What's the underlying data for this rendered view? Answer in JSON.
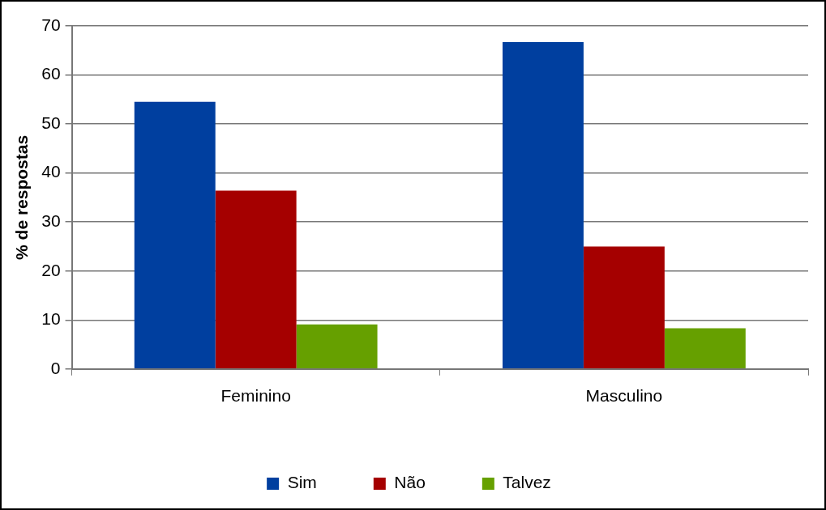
{
  "chart_data": {
    "type": "bar",
    "ylabel": "% de respostas",
    "categories": [
      "Feminino",
      "Masculino"
    ],
    "series": [
      {
        "name": "Sim",
        "color": "#003f9f",
        "values": [
          54.5,
          66.7
        ]
      },
      {
        "name": "Não",
        "color": "#a50000",
        "values": [
          36.4,
          25
        ]
      },
      {
        "name": "Talvez",
        "color": "#66a000",
        "values": [
          9.1,
          8.3
        ]
      }
    ],
    "ylim": [
      0,
      70
    ],
    "yticks": [
      0,
      10,
      20,
      30,
      40,
      50,
      60,
      70
    ],
    "grid": "y",
    "legend": "bottom"
  }
}
